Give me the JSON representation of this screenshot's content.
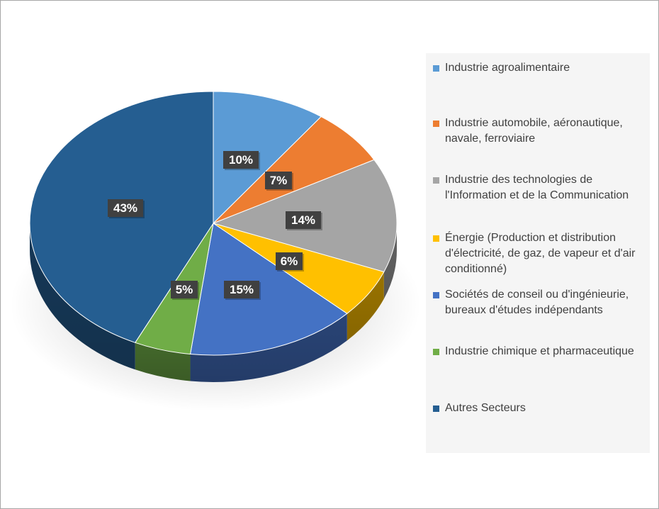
{
  "chart_data": {
    "type": "pie",
    "title": "",
    "legend_position": "right",
    "slices": [
      {
        "label": "Industrie agroalimentaire",
        "value": 10,
        "data_label": "10%",
        "color": "#5b9bd5"
      },
      {
        "label": "Industrie automobile, aéronautique, navale, ferroviaire",
        "value": 7,
        "data_label": "7%",
        "color": "#ed7d31"
      },
      {
        "label": "Industrie des technologies de l'Information et de la Communication",
        "value": 14,
        "data_label": "14%",
        "color": "#a5a5a5"
      },
      {
        "label": "Énergie (Production et distribution d'électricité, de gaz, de vapeur et d'air conditionné)",
        "value": 6,
        "data_label": "6%",
        "color": "#ffc000"
      },
      {
        "label": "Sociétés de conseil ou d'ingénieurie, bureaux d'études indépendants",
        "value": 15,
        "data_label": "15%",
        "color": "#4472c4"
      },
      {
        "label": "Industrie chimique et pharmaceutique",
        "value": 5,
        "data_label": "5%",
        "color": "#70ad47"
      },
      {
        "label": "Autres Secteurs",
        "value": 43,
        "data_label": "43%",
        "color": "#255e91"
      }
    ]
  }
}
